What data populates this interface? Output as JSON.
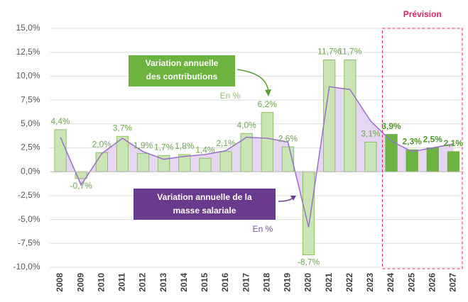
{
  "chart_data": {
    "type": "bar",
    "categories": [
      "2008",
      "2009",
      "2010",
      "2011",
      "2012",
      "2013",
      "2014",
      "2015",
      "2016",
      "2017",
      "2018",
      "2019",
      "2020",
      "2021",
      "2022",
      "2023",
      "2024",
      "2025",
      "2026",
      "2027"
    ],
    "series": [
      {
        "type": "bar",
        "color": "#c9e5b3",
        "forecast_color": "#6cb33f",
        "label_color": "#6aa84f",
        "values": [
          4.4,
          -0.7,
          2.0,
          3.7,
          1.9,
          1.7,
          1.8,
          1.4,
          2.1,
          4.0,
          6.2,
          2.6,
          -8.7,
          11.7,
          11.7,
          3.1,
          3.9,
          2.3,
          2.5,
          2.1
        ],
        "value_labels": [
          "4,4%",
          "-0,7%",
          "2,0%",
          "3,7%",
          "1,9%",
          "1,7%",
          "1,8%",
          "1,4%",
          "2,1%",
          "4,0%",
          "6,2%",
          "2,6%",
          "-8,7%",
          "11,7%",
          "11,7%",
          "3,1%",
          "3,9%",
          "2,3%",
          "2,5%",
          "2,1%"
        ]
      },
      {
        "type": "area",
        "color": "#9a6fc9",
        "fill": "#e6d6f1",
        "values": [
          3.6,
          -1.4,
          1.9,
          3.5,
          2.1,
          1.3,
          1.6,
          1.8,
          2.2,
          3.6,
          3.5,
          3.1,
          -5.8,
          8.9,
          8.6,
          5.3,
          3.2,
          2.1,
          2.5,
          2.9
        ]
      }
    ],
    "ylim": [
      -10,
      15
    ],
    "yticks": [
      {
        "value": -10,
        "label": "-10,0%"
      },
      {
        "value": -7.5,
        "label": "-7,5%"
      },
      {
        "value": -5,
        "label": "-5,0%"
      },
      {
        "value": -2.5,
        "label": "-2,5%"
      },
      {
        "value": 0,
        "label": "0,0%"
      },
      {
        "value": 2.5,
        "label": "2,5%"
      },
      {
        "value": 5,
        "label": "5,0%"
      },
      {
        "value": 7.5,
        "label": "7,5%"
      },
      {
        "value": 10,
        "label": "10,0%"
      },
      {
        "value": 12.5,
        "label": "12,5%"
      },
      {
        "value": 15,
        "label": "15,0%"
      }
    ],
    "grid": true,
    "forecast": {
      "label": "Prévision",
      "start": "2024",
      "end": "2027"
    },
    "annotations": [
      {
        "lines": [
          "Variation annuelle",
          "des contributions"
        ],
        "unit": "En %"
      },
      {
        "lines": [
          "Variation annuelle de la",
          "masse salariale"
        ],
        "unit": "En %"
      }
    ]
  }
}
